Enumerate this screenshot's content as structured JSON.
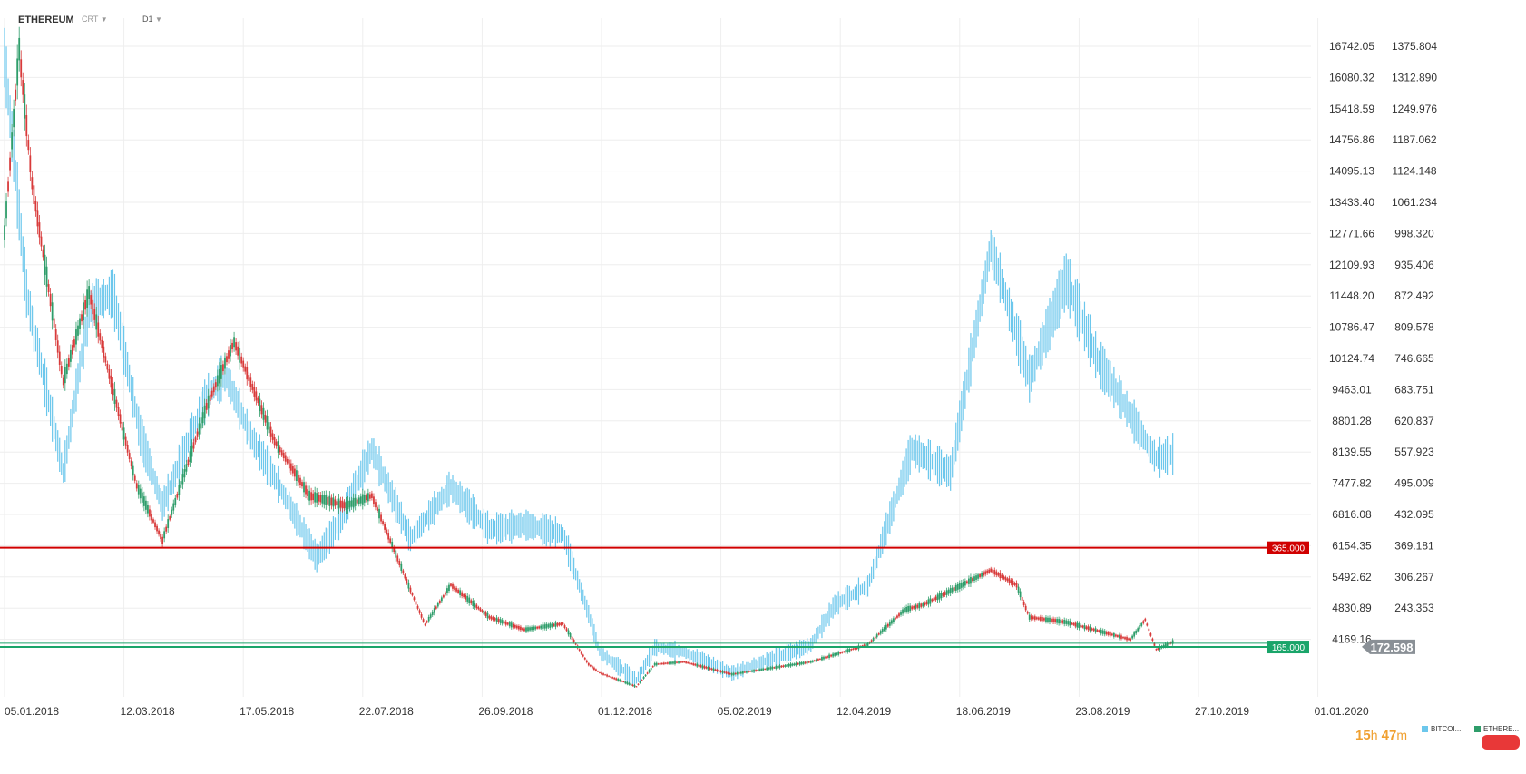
{
  "header": {
    "symbol": "ETHEREUM",
    "chart_type": "CRT",
    "caret": "▼",
    "timeframe": "D1"
  },
  "timer": {
    "hours": "15",
    "h_unit": "h",
    "minutes": "47",
    "m_unit": "m"
  },
  "colors": {
    "btc": "#6cc7ec",
    "eth_up": "#2e9d6a",
    "eth_down": "#d83a3a",
    "resistance": "#d00000",
    "support": "#1aa56a",
    "price_tag": "#8a9096",
    "grid": "#eeeeee"
  },
  "chart_data": {
    "type": "line",
    "x_labels": [
      "05.01.2018",
      "12.03.2018",
      "17.05.2018",
      "22.07.2018",
      "26.09.2018",
      "01.12.2018",
      "05.02.2019",
      "12.04.2019",
      "18.06.2019",
      "23.08.2019",
      "27.10.2019",
      "01.01.2020"
    ],
    "left_axis_ticks": [
      "16742.05",
      "16080.32",
      "15418.59",
      "14756.86",
      "14095.13",
      "13433.40",
      "12771.66",
      "12109.93",
      "11448.20",
      "10786.47",
      "10124.74",
      "9463.01",
      "8801.28",
      "8139.55",
      "7477.82",
      "6816.08",
      "6154.35",
      "5492.62",
      "4830.89",
      "4169.16"
    ],
    "right_axis_ticks": [
      "1375.804",
      "1312.890",
      "1249.976",
      "1187.062",
      "1124.148",
      "1061.234",
      "998.320",
      "935.406",
      "872.492",
      "809.578",
      "746.665",
      "683.751",
      "620.837",
      "557.923",
      "495.009",
      "432.095",
      "369.181",
      "306.267",
      "243.353"
    ],
    "ylim_eth": [
      20,
      1400
    ],
    "series": [
      {
        "name": "BITCOI...",
        "axis": "left",
        "x": [
          "2018-01-05",
          "2018-01-17",
          "2018-02-06",
          "2018-02-20",
          "2018-03-05",
          "2018-03-20",
          "2018-04-01",
          "2018-04-25",
          "2018-05-05",
          "2018-05-20",
          "2018-06-01",
          "2018-06-24",
          "2018-07-07",
          "2018-07-24",
          "2018-08-14",
          "2018-08-28",
          "2018-09-05",
          "2018-09-26",
          "2018-10-15",
          "2018-11-05",
          "2018-11-19",
          "2018-11-25",
          "2018-12-15",
          "2018-12-25",
          "2019-01-10",
          "2019-02-05",
          "2019-03-20",
          "2019-04-02",
          "2019-04-20",
          "2019-05-14",
          "2019-06-04",
          "2019-06-26",
          "2019-07-17",
          "2019-08-06",
          "2019-08-23",
          "2019-09-24",
          "2019-10-03"
        ],
        "y": [
          16500,
          11500,
          7700,
          11200,
          11500,
          8500,
          7000,
          9300,
          9800,
          8400,
          7600,
          5900,
          6700,
          8200,
          6300,
          7000,
          7400,
          6500,
          6600,
          6400,
          4700,
          3900,
          3300,
          4000,
          3900,
          3450,
          4050,
          4900,
          5300,
          8200,
          7700,
          12500,
          9700,
          11800,
          10100,
          8000,
          8100
        ]
      },
      {
        "name": "ETHERE...",
        "axis": "right",
        "x": [
          "2018-01-05",
          "2018-01-13",
          "2018-01-20",
          "2018-02-06",
          "2018-02-20",
          "2018-03-18",
          "2018-04-01",
          "2018-04-25",
          "2018-05-10",
          "2018-06-01",
          "2018-06-20",
          "2018-07-10",
          "2018-07-24",
          "2018-08-14",
          "2018-08-22",
          "2018-09-05",
          "2018-09-26",
          "2018-10-15",
          "2018-11-05",
          "2018-11-19",
          "2018-11-25",
          "2018-12-15",
          "2018-12-25",
          "2019-01-10",
          "2019-02-05",
          "2019-03-20",
          "2019-04-20",
          "2019-05-10",
          "2019-05-20",
          "2019-06-26",
          "2019-07-10",
          "2019-07-17",
          "2019-08-06",
          "2019-09-10",
          "2019-09-18",
          "2019-09-24",
          "2019-10-03"
        ],
        "y": [
          1000,
          1370,
          1100,
          700,
          880,
          490,
          380,
          650,
          780,
          580,
          470,
          450,
          470,
          280,
          210,
          290,
          225,
          200,
          212,
          130,
          113,
          85,
          130,
          135,
          110,
          135,
          170,
          240,
          250,
          320,
          290,
          225,
          215,
          180,
          220,
          160,
          175
        ]
      }
    ],
    "h_lines": [
      {
        "label": "365.000",
        "value": 365.0
      },
      {
        "label": "165.000",
        "value": 165.0
      }
    ],
    "current_price": {
      "label": "172.598",
      "value": 172.598
    },
    "legend": [
      {
        "label": "BITCOI...",
        "color": "#6cc7ec"
      },
      {
        "label": "ETHERE...",
        "color": "#2e9d6a"
      }
    ]
  }
}
